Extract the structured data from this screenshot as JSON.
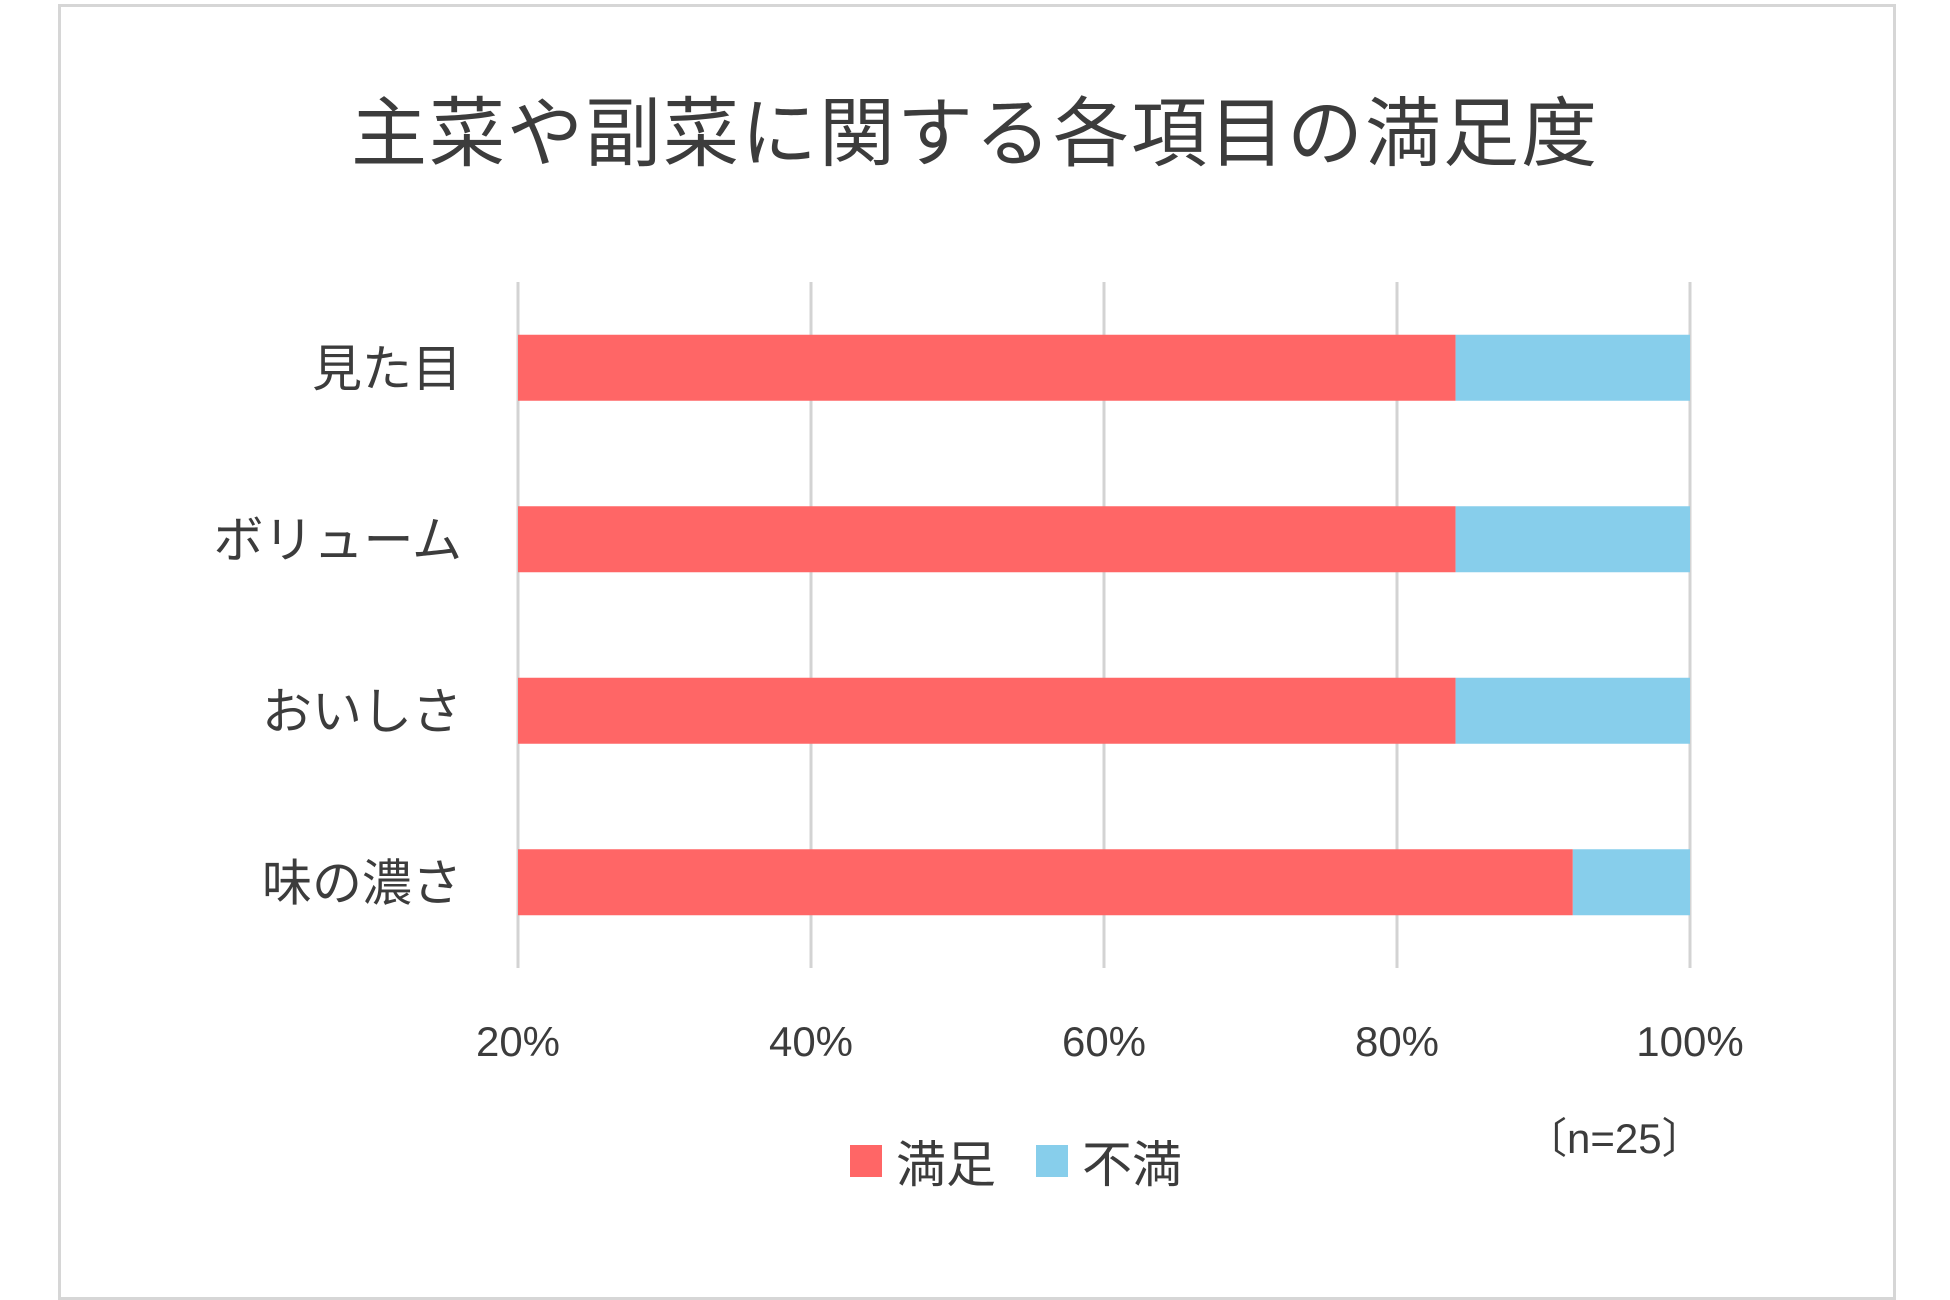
{
  "chart_data": {
    "type": "bar",
    "orientation": "horizontal",
    "stacked": "percent",
    "title": "主菜や副菜に関する各項目の満足度",
    "categories": [
      "見た目",
      "ボリューム",
      "おいしさ",
      "味の濃さ"
    ],
    "series": [
      {
        "name": "満足",
        "color": "#ff6666",
        "values": [
          84,
          84,
          84,
          92
        ]
      },
      {
        "name": "不満",
        "color": "#87ceeb",
        "values": [
          16,
          16,
          16,
          8
        ]
      }
    ],
    "xlim": [
      20,
      100
    ],
    "xticks": [
      20,
      40,
      60,
      80,
      100
    ],
    "tick_labels": [
      "20%",
      "40%",
      "60%",
      "80%",
      "100%"
    ],
    "grid": true,
    "legend": "bottom",
    "note": "〔n=25〕"
  }
}
